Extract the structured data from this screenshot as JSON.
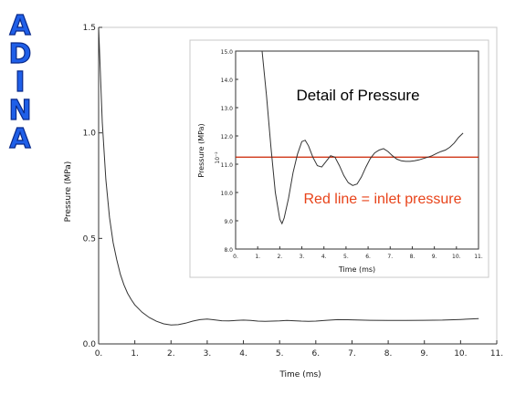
{
  "logo": {
    "letters": [
      "A",
      "D",
      "I",
      "N",
      "A"
    ],
    "color": "#1f5fe8"
  },
  "chart_data": [
    {
      "type": "line",
      "title": "",
      "xlabel": "Time (ms)",
      "ylabel": "Pressure (MPa)",
      "xlim": [
        0,
        11
      ],
      "ylim": [
        0,
        1.5
      ],
      "xticks": [
        "0.",
        "1.",
        "2.",
        "3.",
        "4.",
        "5.",
        "6.",
        "7.",
        "8.",
        "9.",
        "10.",
        "11."
      ],
      "yticks": [
        "0.0",
        "0.5",
        "1.0",
        "1.5"
      ],
      "series": [
        {
          "color": "#333333",
          "x": [
            0.0,
            0.1,
            0.2,
            0.3,
            0.4,
            0.5,
            0.6,
            0.7,
            0.8,
            0.9,
            1.0,
            1.2,
            1.4,
            1.6,
            1.8,
            2.0,
            2.2,
            2.4,
            2.6,
            2.8,
            3.0,
            3.2,
            3.4,
            3.6,
            3.8,
            4.0,
            4.2,
            4.4,
            4.6,
            4.8,
            5.0,
            5.2,
            5.4,
            5.6,
            5.8,
            6.0,
            6.3,
            6.6,
            7.0,
            7.5,
            8.0,
            8.5,
            9.0,
            9.5,
            10.0,
            10.5
          ],
          "y": [
            1.5,
            1.05,
            0.78,
            0.6,
            0.48,
            0.4,
            0.33,
            0.28,
            0.24,
            0.21,
            0.185,
            0.15,
            0.125,
            0.107,
            0.095,
            0.09,
            0.091,
            0.098,
            0.108,
            0.115,
            0.118,
            0.114,
            0.11,
            0.109,
            0.111,
            0.113,
            0.111,
            0.108,
            0.107,
            0.108,
            0.109,
            0.111,
            0.11,
            0.108,
            0.107,
            0.108,
            0.112,
            0.115,
            0.114,
            0.112,
            0.111,
            0.111,
            0.112,
            0.113,
            0.116,
            0.12
          ]
        }
      ]
    },
    {
      "type": "line",
      "title": "Detail of Pressure",
      "annotation": "Red line = inlet pressure",
      "xlabel": "Time (ms)",
      "ylabel": "Pressure (MPa)",
      "yexponent": "10⁻²",
      "xlim": [
        0,
        11
      ],
      "ylim": [
        8,
        15
      ],
      "xticks": [
        "0.",
        "1.",
        "2.",
        "3.",
        "4.",
        "5.",
        "6.",
        "7.",
        "8.",
        "9.",
        "10.",
        "11."
      ],
      "yticks": [
        "8.0",
        "9.0",
        "10.0",
        "11.0",
        "12.0",
        "13.0",
        "14.0",
        "15.0"
      ],
      "reference_line": {
        "y": 11.25,
        "color": "#cc2200"
      },
      "series": [
        {
          "color": "#333333",
          "x": [
            1.2,
            1.4,
            1.6,
            1.8,
            2.0,
            2.1,
            2.2,
            2.4,
            2.6,
            2.8,
            3.0,
            3.15,
            3.3,
            3.5,
            3.7,
            3.9,
            4.1,
            4.3,
            4.5,
            4.7,
            4.9,
            5.1,
            5.3,
            5.5,
            5.7,
            5.9,
            6.1,
            6.3,
            6.5,
            6.7,
            6.9,
            7.1,
            7.3,
            7.5,
            7.7,
            7.9,
            8.1,
            8.3,
            8.5,
            8.7,
            8.9,
            9.1,
            9.3,
            9.5,
            9.7,
            9.9,
            10.1,
            10.3
          ],
          "y": [
            15.0,
            13.4,
            11.6,
            10.0,
            9.05,
            8.9,
            9.1,
            9.8,
            10.7,
            11.35,
            11.8,
            11.85,
            11.65,
            11.25,
            10.95,
            10.9,
            11.1,
            11.3,
            11.25,
            10.95,
            10.6,
            10.35,
            10.25,
            10.3,
            10.55,
            10.9,
            11.2,
            11.4,
            11.5,
            11.55,
            11.45,
            11.3,
            11.18,
            11.12,
            11.1,
            11.1,
            11.12,
            11.15,
            11.2,
            11.25,
            11.3,
            11.38,
            11.45,
            11.5,
            11.6,
            11.75,
            11.95,
            12.1
          ]
        }
      ]
    }
  ]
}
